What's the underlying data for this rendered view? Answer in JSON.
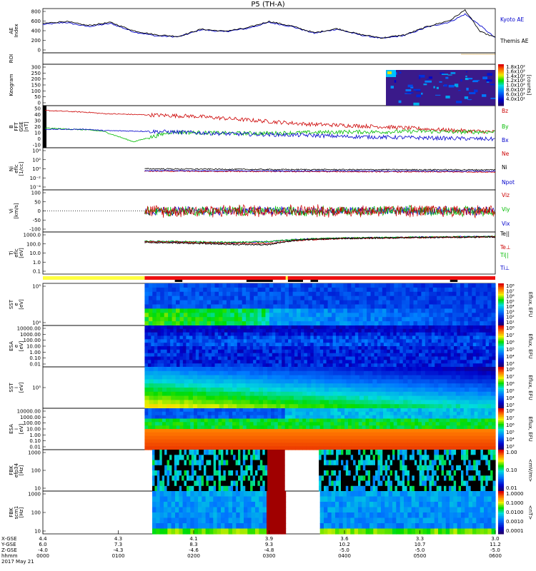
{
  "chart_data": {
    "type": "line",
    "title": "P5 (TH-A)",
    "time_axis": {
      "row_labels": [
        "X-GSE",
        "Y-GSE",
        "Z-GSE",
        "hhmm",
        "2017 May 21"
      ],
      "ticks": [
        {
          "x": "4.4",
          "y": "6.0",
          "z": "-4.0",
          "t": "0000"
        },
        {
          "x": "4.3",
          "y": "7.3",
          "z": "-4.3",
          "t": "0100"
        },
        {
          "x": "4.1",
          "y": "8.3",
          "z": "-4.6",
          "t": "0200"
        },
        {
          "x": "3.9",
          "y": "9.3",
          "z": "-4.8",
          "t": "0300"
        },
        {
          "x": "3.6",
          "y": "10.2",
          "z": "-5.0",
          "t": "0400"
        },
        {
          "x": "3.3",
          "y": "10.7",
          "z": "-5.0",
          "t": "0500"
        },
        {
          "x": "3.0",
          "y": "11.2",
          "z": "-5.0",
          "t": "0600"
        }
      ],
      "range_hours": [
        0,
        6
      ]
    },
    "panels": [
      {
        "id": "ae",
        "ylabel": "AE Index",
        "yticks": [
          "800",
          "600",
          "400",
          "200",
          "0"
        ],
        "ylim": [
          0,
          800
        ],
        "series": [
          {
            "name": "Kyoto AE",
            "color": "#0000cc",
            "x": [
              0,
              0.3,
              0.6,
              0.9,
              1.2,
              1.5,
              1.8,
              2.1,
              2.4,
              2.7,
              3.0,
              3.3,
              3.6,
              3.9,
              4.2,
              4.5,
              4.8,
              5.1,
              5.4,
              5.6,
              5.8,
              6.0
            ],
            "values": [
              520,
              560,
              480,
              540,
              380,
              300,
              280,
              420,
              380,
              440,
              560,
              480,
              350,
              430,
              320,
              250,
              310,
              470,
              570,
              720,
              500,
              260
            ]
          },
          {
            "name": "Themis AE",
            "color": "#000000",
            "x": [
              0,
              0.3,
              0.6,
              0.9,
              1.2,
              1.5,
              1.8,
              2.1,
              2.4,
              2.7,
              3.0,
              3.3,
              3.6,
              3.9,
              4.2,
              4.5,
              4.8,
              5.1,
              5.4,
              5.6,
              5.8,
              6.0
            ],
            "values": [
              540,
              580,
              500,
              560,
              400,
              320,
              290,
              430,
              390,
              450,
              580,
              490,
              360,
              440,
              330,
              260,
              320,
              480,
              600,
              800,
              380,
              270
            ]
          }
        ]
      },
      {
        "id": "roi",
        "ylabel": "ROI"
      },
      {
        "id": "keogram",
        "ylabel": "Keogram",
        "yticks": [
          "300",
          "250",
          "200",
          "150",
          "100",
          "50",
          "0"
        ],
        "colorbar": {
          "label": "[counts]",
          "ticks": [
            "1.8x10²",
            "1.6x10²",
            "1.4x10²",
            "1.2x10²",
            "1.0x10²",
            "8.0x10¹",
            "6.0x10¹",
            "4.0x10¹"
          ]
        }
      },
      {
        "id": "bfield",
        "ylabel": "B FFT GSE [nT]",
        "yticks": [
          "50",
          "40",
          "30",
          "20",
          "10",
          "0",
          "-10"
        ],
        "ylim": [
          -10,
          50
        ],
        "series": [
          {
            "name": "Bz",
            "color": "#cc0000",
            "x": [
              0,
              0.6,
              0.8,
              1.4,
              1.7,
              2.0,
              2.5,
              3.0,
              3.5,
              4.0,
              4.5,
              5.0,
              5.5,
              6.0
            ],
            "values": [
              45,
              42,
              40,
              38,
              37,
              36,
              32,
              28,
              24,
              22,
              20,
              17,
              14,
              12
            ]
          },
          {
            "name": "By",
            "color": "#00bb00",
            "x": [
              0,
              0.6,
              0.8,
              1.2,
              1.7,
              2.0,
              2.5,
              3.0,
              3.5,
              4.0,
              4.5,
              5.0,
              5.5,
              6.0
            ],
            "values": [
              18,
              15,
              13,
              -3,
              12,
              11,
              10,
              10,
              11,
              12,
              12,
              13,
              12,
              12
            ]
          },
          {
            "name": "Bx",
            "color": "#0000cc",
            "x": [
              0,
              0.6,
              0.8,
              1.4,
              1.7,
              2.0,
              2.5,
              3.0,
              3.5,
              4.0,
              4.5,
              5.0,
              5.5,
              6.0
            ],
            "values": [
              16,
              16,
              14,
              13,
              12,
              11,
              9,
              8,
              7,
              5,
              4,
              3,
              2,
              1
            ]
          }
        ]
      },
      {
        "id": "density",
        "ylabel": "Ni eflc [1/cc]",
        "yticks": [
          "10⁴",
          "10²",
          "10⁰",
          "10⁻²",
          "10⁻⁴"
        ],
        "series": [
          {
            "name": "Ne",
            "color": "#cc0000",
            "x": [
              1.35,
              3.0,
              6.0
            ],
            "values": [
              0.3,
              0.25,
              0.2
            ]
          },
          {
            "name": "Ni",
            "color": "#000000",
            "x": [
              1.35,
              3.0,
              6.0
            ],
            "values": [
              1.0,
              0.7,
              0.6
            ]
          },
          {
            "name": "Npot",
            "color": "#0000cc",
            "x": [
              1.35,
              3.0,
              6.0
            ],
            "values": [
              0.4,
              0.35,
              0.3
            ]
          }
        ]
      },
      {
        "id": "velocity",
        "ylabel": "Vi [km/s]",
        "yticks": [
          "100",
          "50",
          "0",
          "-50",
          "-100"
        ],
        "ylim": [
          -100,
          100
        ],
        "series": [
          {
            "name": "Viz",
            "color": "#cc0000"
          },
          {
            "name": "Viy",
            "color": "#00bb00"
          },
          {
            "name": "Vix",
            "color": "#0000cc"
          }
        ]
      },
      {
        "id": "temperature",
        "ylabel": "Ti eflc [eV]",
        "yticks": [
          "1000.0",
          "100.0",
          "10.0",
          "1.0",
          "0.1"
        ],
        "series": [
          {
            "name": "Te||",
            "color": "#000000",
            "x": [
              1.35,
              2.5,
              3.0,
              3.5,
              4.0,
              5.0,
              6.0
            ],
            "values": [
              150,
              90,
              80,
              300,
              400,
              500,
              600
            ]
          },
          {
            "name": "Te⊥",
            "color": "#cc0000",
            "x": [
              1.35,
              2.5,
              3.0,
              3.5,
              4.0,
              5.0,
              6.0
            ],
            "values": [
              170,
              120,
              110,
              280,
              400,
              500,
              600
            ]
          },
          {
            "name": "Ti||",
            "color": "#00bb00",
            "x": [
              1.35,
              2.5,
              3.0,
              3.5,
              4.0,
              5.0,
              6.0
            ],
            "values": [
              200,
              150,
              180,
              350,
              450,
              550,
              650
            ]
          },
          {
            "name": "Ti⊥",
            "color": "#0000cc",
            "x": [
              1.35,
              2.5,
              3.0,
              3.5,
              4.0,
              5.0,
              6.0
            ],
            "values": [
              190,
              140,
              170,
              340,
              440,
              540,
              640
            ]
          }
        ]
      },
      {
        "id": "sst_e",
        "type": "heatmap",
        "ylabel": "SST e [eV]",
        "yticks": [
          "10⁵",
          "10⁴"
        ],
        "colorbar": {
          "label": "Eflux, EFU",
          "ticks": [
            "10⁸",
            "10⁷",
            "10⁶",
            "10⁵",
            "10⁴",
            "10³",
            "10²",
            "10¹"
          ]
        }
      },
      {
        "id": "esa_e",
        "type": "heatmap",
        "ylabel": "ESA e [eV]",
        "yticks": [
          "10000.00",
          "1000.00",
          "100.00",
          "10.00",
          "1.00",
          "0.10",
          "0.01"
        ],
        "colorbar": {
          "label": "Eflux, EFU",
          "ticks": [
            "10⁸",
            "10⁷",
            "10⁶",
            "10⁵",
            "10⁴",
            "10³"
          ]
        }
      },
      {
        "id": "sst_i",
        "type": "heatmap",
        "ylabel": "SST i [eV]",
        "yticks": [
          "10⁵"
        ],
        "colorbar": {
          "label": "Eflux, EFU",
          "ticks": [
            "10⁸",
            "10⁷",
            "10⁶",
            "10⁵",
            "10⁴",
            "10³"
          ]
        }
      },
      {
        "id": "esa_i",
        "type": "heatmap",
        "ylabel": "ESA i [eV]",
        "yticks": [
          "10000.00",
          "1000.00",
          "100.00",
          "10.00",
          "1.00",
          "0.10",
          "0.01"
        ],
        "colorbar": {
          "label": "Eflux, EFU",
          "ticks": [
            "10⁸",
            "10⁷",
            "10⁶",
            "10⁵",
            "10⁴",
            "10³"
          ]
        }
      },
      {
        "id": "fbk_e",
        "type": "heatmap",
        "ylabel": "FBK efp34 [Hz]",
        "yticks": [
          "1000",
          "100",
          "10"
        ],
        "colorbar": {
          "label": "<mV/m>",
          "ticks": [
            "1.00",
            "0.10",
            "0.01"
          ]
        }
      },
      {
        "id": "fbk_b",
        "type": "heatmap",
        "ylabel": "FBK scm1 [Hz]",
        "yticks": [
          "1000",
          "100",
          "10"
        ],
        "colorbar": {
          "label": "<nT>",
          "ticks": [
            "1.0000",
            "0.1000",
            "0.0100",
            "0.0010",
            "0.0001"
          ]
        }
      }
    ]
  }
}
